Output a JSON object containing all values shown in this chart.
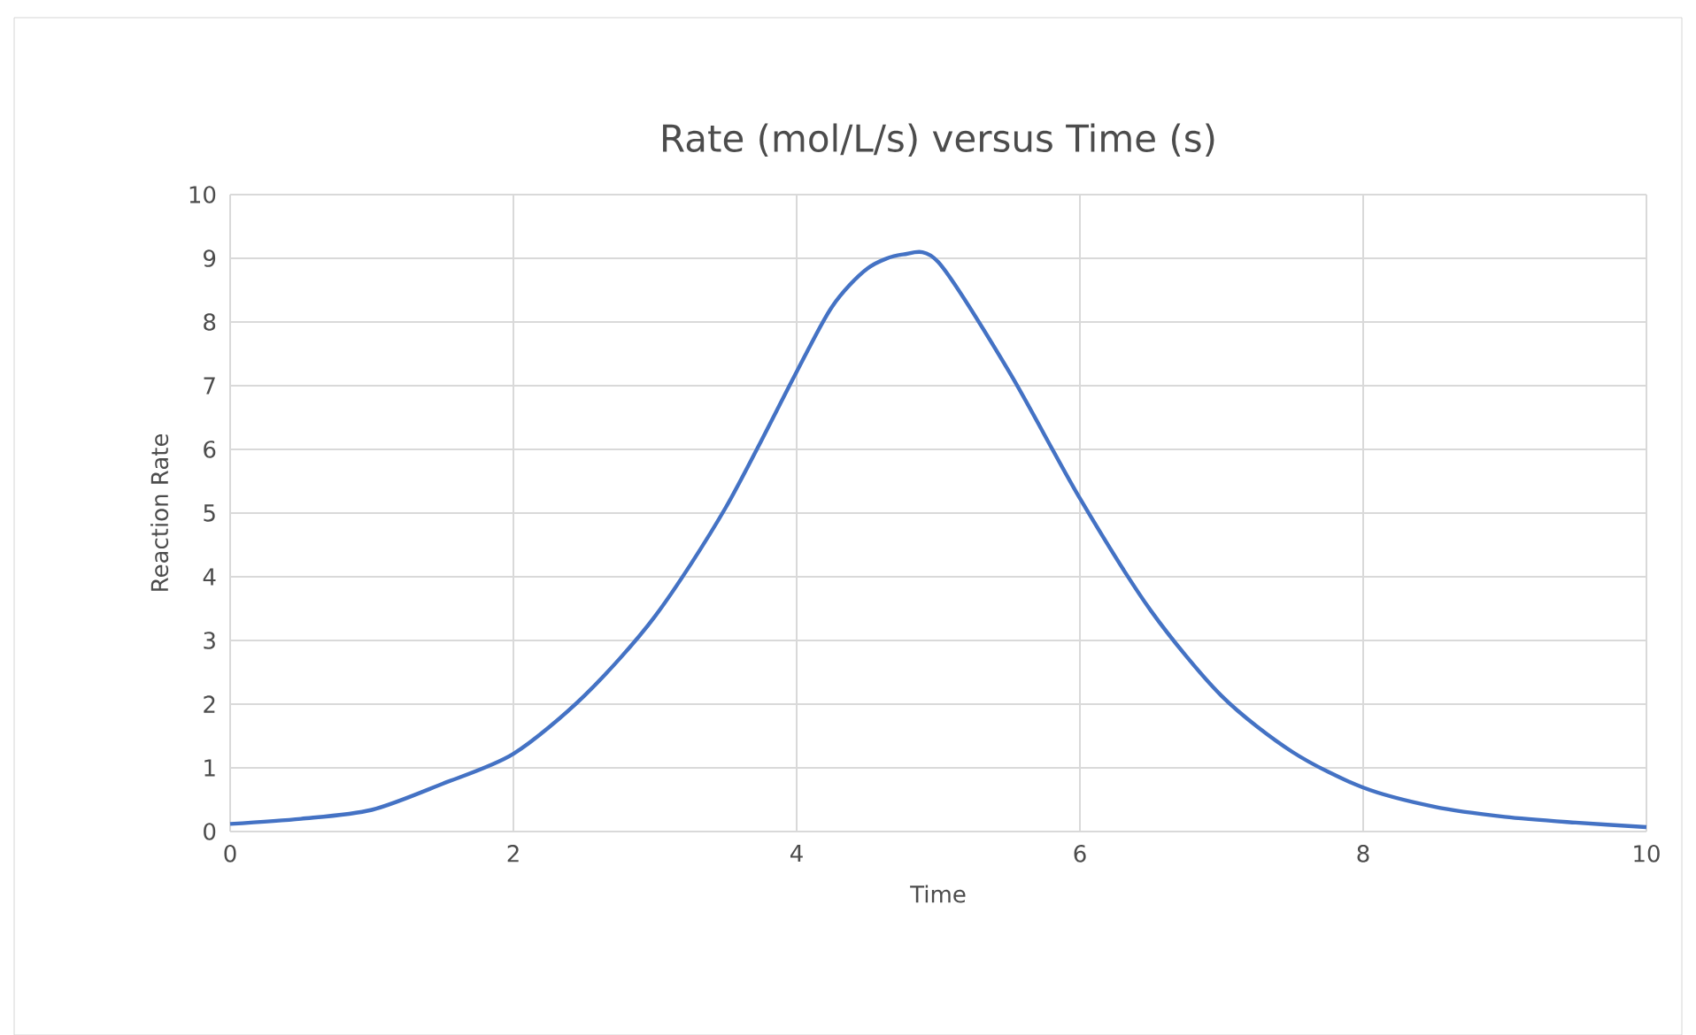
{
  "chart_data": {
    "type": "line",
    "title": "Rate (mol/L/s) versus Time (s)",
    "xlabel": "Time",
    "ylabel": "Reaction Rate",
    "series": [
      {
        "color": "#4472c4",
        "x": [
          0,
          0.5,
          1,
          1.5,
          2,
          2.5,
          3,
          3.5,
          4,
          4.25,
          4.5,
          4.75,
          5,
          5.5,
          6,
          6.5,
          7,
          7.5,
          8,
          8.5,
          9,
          9.5,
          10
        ],
        "values": [
          0.12,
          0.2,
          0.34,
          0.75,
          1.22,
          2.13,
          3.38,
          5.09,
          7.22,
          8.24,
          8.84,
          9.06,
          8.94,
          7.22,
          5.23,
          3.47,
          2.13,
          1.25,
          0.69,
          0.39,
          0.23,
          0.14,
          0.07
        ]
      }
    ],
    "xlim": [
      0,
      10
    ],
    "ylim": [
      0,
      10
    ],
    "xticks": [
      0,
      2,
      4,
      6,
      8,
      10
    ],
    "yticks": [
      0,
      1,
      2,
      3,
      4,
      5,
      6,
      7,
      8,
      9,
      10
    ],
    "grid": true,
    "marker": "none",
    "line_style": "solid",
    "legend": false
  }
}
